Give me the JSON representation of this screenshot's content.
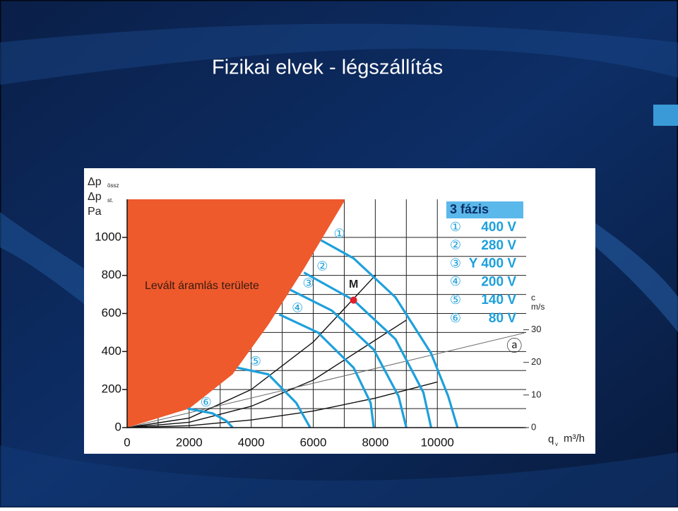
{
  "slide_title": "Fizikai elvek - légszállítás",
  "chart_data": {
    "type": "line",
    "xlabel": {
      "text": "q",
      "sub": "v",
      "unit": "m³/h"
    },
    "ylabel": [
      {
        "text": "Δp",
        "sub": "össz"
      },
      {
        "text": "Δp",
        "sub": "st."
      },
      {
        "text": "Pa"
      }
    ],
    "y2label": [
      "c",
      "m/s"
    ],
    "xlim": [
      0,
      13000
    ],
    "xticks": [
      0,
      2000,
      4000,
      6000,
      8000,
      10000
    ],
    "ylim": [
      0,
      1200
    ],
    "yticks": [
      0,
      200,
      400,
      600,
      800,
      1000
    ],
    "y2lim": [
      0,
      70
    ],
    "y2ticks": [
      0,
      10,
      20,
      30
    ],
    "grid": true,
    "legend_title": "3 fázis",
    "region": {
      "name": "Levált áramlás területe",
      "color": "#ee5a2c",
      "x": [
        0,
        2000,
        3400,
        4550,
        5700,
        7000
      ],
      "values": [
        0,
        100,
        280,
        540,
        835,
        1190
      ]
    },
    "series": [
      {
        "marker": "①",
        "name": "400 V",
        "color": "#1ea0dc",
        "x": [
          6250,
          7300,
          8650,
          9800,
          10350,
          10650
        ],
        "values": [
          985,
          890,
          685,
          390,
          165,
          0
        ]
      },
      {
        "marker": "②",
        "name": "280 V",
        "color": "#1ea0dc",
        "x": [
          5700,
          7300,
          8650,
          9550,
          9800
        ],
        "values": [
          815,
          670,
          465,
          185,
          0
        ]
      },
      {
        "marker": "③",
        "name": "Y 400 V",
        "color": "#1ea0dc",
        "x": [
          5250,
          6600,
          7950,
          8750,
          9000
        ],
        "values": [
          725,
          615,
          410,
          165,
          0
        ]
      },
      {
        "marker": "④",
        "name": "200 V",
        "color": "#1ea0dc",
        "x": [
          4900,
          6150,
          7300,
          7850,
          7950
        ],
        "values": [
          595,
          500,
          315,
          130,
          0
        ]
      },
      {
        "marker": "⑤",
        "name": "140 V",
        "color": "#1ea0dc",
        "x": [
          3550,
          4550,
          5450,
          5900
        ],
        "values": [
          315,
          280,
          130,
          0
        ]
      },
      {
        "marker": "⑥",
        "name": "80 V",
        "color": "#1ea0dc",
        "x": [
          1950,
          2750,
          3200,
          3400
        ],
        "values": [
          100,
          75,
          35,
          0
        ]
      }
    ],
    "system_lines": [
      {
        "color": "#111111",
        "x": [
          0,
          2000,
          4000,
          6000,
          8000
        ],
        "values": [
          0,
          50,
          200,
          450,
          800
        ]
      },
      {
        "color": "#111111",
        "x": [
          0,
          2000,
          4000,
          6000,
          9000
        ],
        "values": [
          0,
          28,
          112,
          250,
          565
        ]
      },
      {
        "color": "#111111",
        "x": [
          0,
          2000,
          4000,
          6000,
          8000,
          10000
        ],
        "values": [
          0,
          10,
          40,
          87,
          155,
          240
        ]
      }
    ],
    "velocity_line": {
      "name": "ⓐ",
      "axis": "y2",
      "color": "#666666",
      "x": [
        0,
        12800
      ],
      "values": [
        0,
        29
      ]
    },
    "point": {
      "name": "M",
      "color": "#e0202a",
      "x": 7300,
      "y": 670
    }
  }
}
